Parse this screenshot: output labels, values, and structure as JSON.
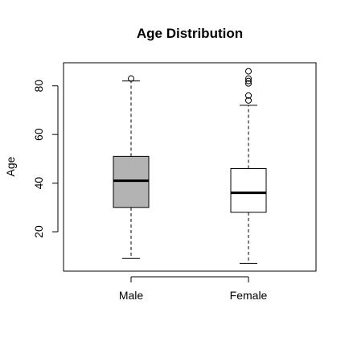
{
  "chart_data": {
    "type": "boxplot",
    "title": "Age Distribution",
    "xlabel": "",
    "ylabel": "Age",
    "ylim": [
      3.8,
      89.5
    ],
    "yticks": [
      20,
      40,
      60,
      80
    ],
    "grid": false,
    "legend": "none",
    "categories": [
      "Male",
      "Female"
    ],
    "boxes": [
      {
        "category": "Male",
        "whisker_low": 9,
        "q1": 30,
        "median": 41,
        "q3": 51,
        "whisker_high": 82,
        "outliers": [
          83
        ],
        "fill": "#b3b3b3"
      },
      {
        "category": "Female",
        "whisker_low": 7,
        "q1": 28,
        "median": 36,
        "q3": 46,
        "whisker_high": 72,
        "outliers": [
          74,
          76,
          81,
          82,
          83,
          86
        ],
        "fill": "#ffffff"
      }
    ]
  }
}
